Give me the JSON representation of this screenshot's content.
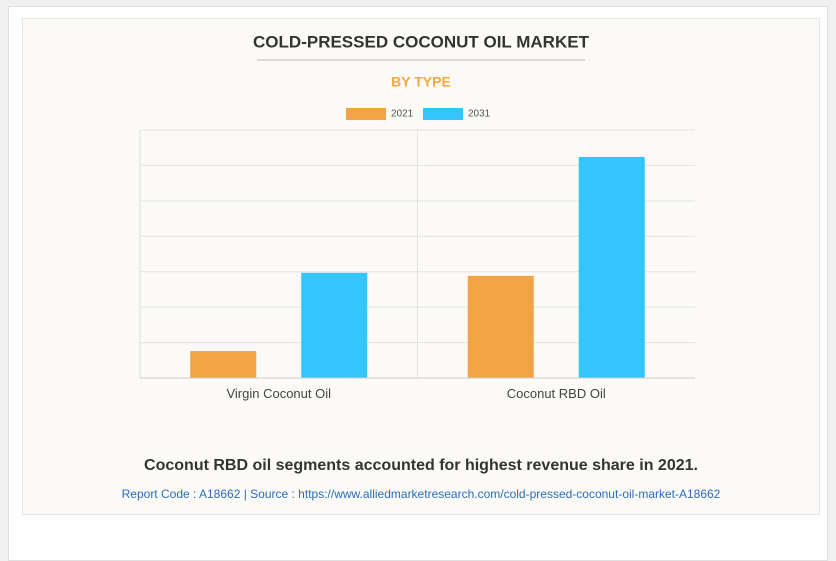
{
  "chart_data": {
    "type": "bar",
    "title": "COLD-PRESSED COCONUT OIL MARKET",
    "subtitle": "BY TYPE",
    "caption": "Coconut RBD oil segments accounted for highest revenue share in 2021.",
    "source": "Report Code : A18662  |  Source : https://www.alliedmarketresearch.com/cold-pressed-coconut-oil-market-A18662",
    "categories": [
      "Virgin Coconut Oil",
      "Coconut RBD Oil"
    ],
    "series": [
      {
        "name": "2021",
        "color": "#f2a444",
        "values": [
          0.76,
          2.88
        ]
      },
      {
        "name": "2031",
        "color": "#33c5fb",
        "values": [
          2.97,
          6.24
        ]
      }
    ],
    "ylim": [
      0,
      7
    ],
    "yticks": [
      0,
      1,
      2,
      3,
      4,
      5,
      6,
      7
    ],
    "grid": true,
    "legend": "top"
  }
}
